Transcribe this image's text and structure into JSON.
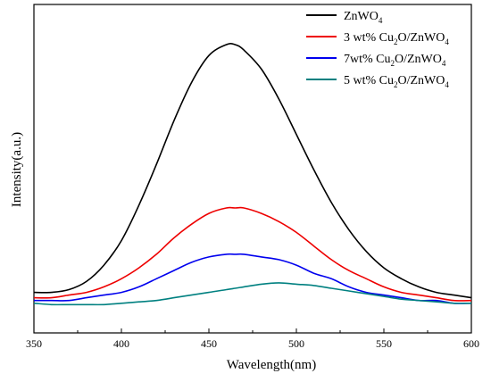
{
  "chart_data": {
    "type": "line",
    "xlabel": "Wavelength(nm)",
    "ylabel": "Intensity(a.u.)",
    "xlim": [
      350,
      600
    ],
    "ylim": [
      0,
      1
    ],
    "x_ticks": [
      350,
      400,
      450,
      500,
      550,
      600
    ],
    "y_ticks_shown": false,
    "grid": false,
    "legend_position": "top-right",
    "x": [
      350,
      360,
      370,
      380,
      390,
      400,
      410,
      420,
      430,
      440,
      450,
      460,
      465,
      470,
      480,
      490,
      500,
      510,
      520,
      530,
      540,
      550,
      560,
      570,
      580,
      590,
      600
    ],
    "series": [
      {
        "name": "ZnWO4",
        "legend_main": "ZnWO",
        "legend_sub": "4",
        "legend_tail": "",
        "legend_sub2": "",
        "color": "#000000",
        "values": [
          0.09,
          0.09,
          0.1,
          0.13,
          0.19,
          0.28,
          0.41,
          0.56,
          0.72,
          0.86,
          0.96,
          1.0,
          1.0,
          0.98,
          0.91,
          0.8,
          0.67,
          0.54,
          0.42,
          0.32,
          0.24,
          0.18,
          0.14,
          0.11,
          0.09,
          0.08,
          0.07
        ]
      },
      {
        "name": "3 wt% Cu2O/ZnWO4",
        "legend_main": "3 wt% Cu",
        "legend_sub": "2",
        "legend_tail": "O/ZnWO",
        "legend_sub2": "4",
        "color": "#ee0000",
        "values": [
          0.07,
          0.07,
          0.08,
          0.09,
          0.11,
          0.14,
          0.18,
          0.23,
          0.29,
          0.34,
          0.38,
          0.4,
          0.4,
          0.4,
          0.38,
          0.35,
          0.31,
          0.26,
          0.21,
          0.17,
          0.14,
          0.11,
          0.09,
          0.08,
          0.07,
          0.06,
          0.06
        ]
      },
      {
        "name": "7wt% Cu2O/ZnWO4",
        "legend_main": "7wt% Cu",
        "legend_sub": "2",
        "legend_tail": "O/ZnWO",
        "legend_sub2": "4",
        "color": "#0000ee",
        "values": [
          0.06,
          0.06,
          0.06,
          0.07,
          0.08,
          0.09,
          0.11,
          0.14,
          0.17,
          0.2,
          0.22,
          0.23,
          0.23,
          0.23,
          0.22,
          0.21,
          0.19,
          0.16,
          0.14,
          0.11,
          0.09,
          0.08,
          0.07,
          0.06,
          0.06,
          0.05,
          0.05
        ]
      },
      {
        "name": "5 wt% Cu2O/ZnWO4",
        "legend_main": "5 wt% Cu",
        "legend_sub": "2",
        "legend_tail": "O/ZnWO",
        "legend_sub2": "4",
        "color": "#008080",
        "values": [
          0.05,
          0.045,
          0.045,
          0.045,
          0.045,
          0.05,
          0.055,
          0.06,
          0.07,
          0.08,
          0.09,
          0.1,
          0.105,
          0.11,
          0.12,
          0.125,
          0.12,
          0.115,
          0.105,
          0.095,
          0.085,
          0.075,
          0.065,
          0.06,
          0.055,
          0.05,
          0.05
        ]
      }
    ]
  }
}
